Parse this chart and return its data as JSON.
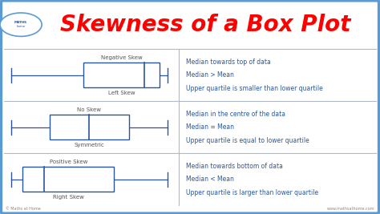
{
  "title": "Skewness of a Box Plot",
  "title_color": "#FF0000",
  "title_fontsize": 20,
  "bg_color": "#FFFFFF",
  "border_color": "#5B9BD5",
  "box_color": "#2B579A",
  "text_color": "#2B579A",
  "label_color": "#666666",
  "divider_color": "#B0B8CC",
  "rows": [
    {
      "top_label": "Negative Skew",
      "bottom_label": "Left Skew",
      "wl": 0.03,
      "wr": 0.44,
      "bl": 0.22,
      "br": 0.42,
      "med": 0.38,
      "descriptions": [
        "Median towards top of data",
        "Median > Mean",
        "Upper quartile is smaller than lower quartile"
      ]
    },
    {
      "top_label": "No Skew",
      "bottom_label": "Symmetric",
      "wl": 0.03,
      "wr": 0.44,
      "bl": 0.13,
      "br": 0.34,
      "med": 0.235,
      "descriptions": [
        "Median in the centre of the data",
        "Median = Mean",
        "Upper quartile is equal to lower quartile"
      ]
    },
    {
      "top_label": "Positive Skew",
      "bottom_label": "Right Skew",
      "wl": 0.03,
      "wr": 0.44,
      "bl": 0.06,
      "br": 0.3,
      "med": 0.115,
      "descriptions": [
        "Median towards bottom of data",
        "Median < Mean",
        "Upper quartile is larger than lower quartile"
      ]
    }
  ],
  "logo_text": "© Maths at Home",
  "website_text": "www.mathsathome.com"
}
